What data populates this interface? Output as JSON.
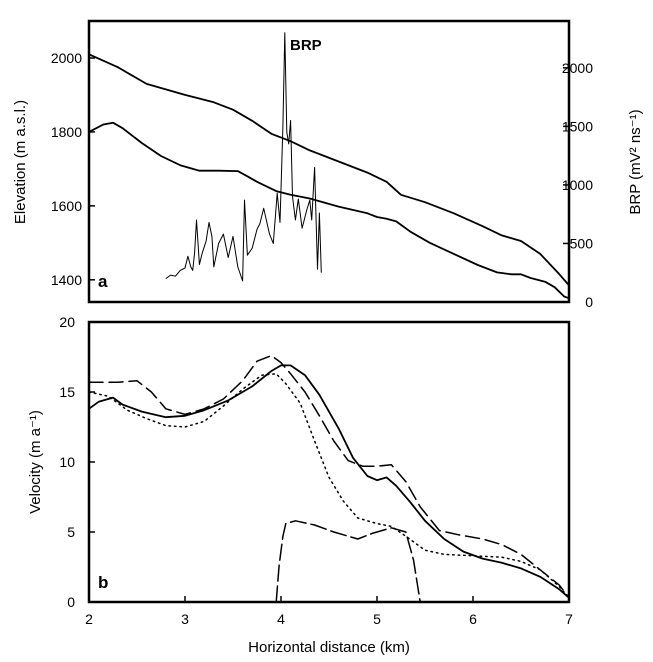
{
  "chart_data": [
    {
      "panel_label": "a",
      "type": "line",
      "xlabel": "",
      "ylabel": "Elevation (m a.s.l.)",
      "ylabel_right": "BRP (mV² ns⁻¹)",
      "xlim": [
        2,
        7
      ],
      "ylim": [
        1340,
        2100
      ],
      "ylim_right": [
        0,
        2400
      ],
      "yticks": [
        "1400",
        "1600",
        "1800",
        "2000"
      ],
      "yticks_right": [
        "0",
        "500",
        "1000",
        "1500",
        "2000"
      ],
      "annotation": "BRP",
      "series": [
        {
          "axis": "left",
          "points": [
            [
              2.0,
              2010
            ],
            [
              2.3,
              1975
            ],
            [
              2.6,
              1930
            ],
            [
              3.0,
              1900
            ],
            [
              3.3,
              1880
            ],
            [
              3.5,
              1860
            ],
            [
              3.7,
              1830
            ],
            [
              3.9,
              1795
            ],
            [
              4.1,
              1775
            ],
            [
              4.3,
              1750
            ],
            [
              4.6,
              1720
            ],
            [
              4.9,
              1690
            ],
            [
              5.1,
              1665
            ],
            [
              5.25,
              1630
            ],
            [
              5.5,
              1610
            ],
            [
              5.8,
              1580
            ],
            [
              6.1,
              1545
            ],
            [
              6.3,
              1520
            ],
            [
              6.5,
              1505
            ],
            [
              6.7,
              1470
            ],
            [
              6.9,
              1415
            ],
            [
              7.0,
              1385
            ]
          ]
        },
        {
          "axis": "left",
          "points": [
            [
              2.0,
              1800
            ],
            [
              2.15,
              1820
            ],
            [
              2.25,
              1825
            ],
            [
              2.35,
              1810
            ],
            [
              2.55,
              1770
            ],
            [
              2.75,
              1735
            ],
            [
              2.95,
              1710
            ],
            [
              3.15,
              1695
            ],
            [
              3.35,
              1695
            ],
            [
              3.55,
              1694
            ],
            [
              3.65,
              1680
            ],
            [
              3.75,
              1665
            ],
            [
              3.95,
              1640
            ],
            [
              4.1,
              1630
            ],
            [
              4.3,
              1620
            ],
            [
              4.6,
              1598
            ],
            [
              4.9,
              1580
            ],
            [
              5.0,
              1570
            ],
            [
              5.1,
              1565
            ],
            [
              5.2,
              1558
            ],
            [
              5.35,
              1530
            ],
            [
              5.55,
              1500
            ],
            [
              5.8,
              1470
            ],
            [
              6.05,
              1440
            ],
            [
              6.25,
              1420
            ],
            [
              6.4,
              1415
            ],
            [
              6.5,
              1415
            ],
            [
              6.6,
              1405
            ],
            [
              6.75,
              1395
            ],
            [
              6.85,
              1380
            ],
            [
              6.95,
              1355
            ],
            [
              7.0,
              1350
            ]
          ]
        },
        {
          "name": "BRP",
          "axis": "right",
          "points": [
            [
              2.8,
              200
            ],
            [
              2.85,
              230
            ],
            [
              2.9,
              220
            ],
            [
              2.95,
              270
            ],
            [
              3.0,
              290
            ],
            [
              3.03,
              390
            ],
            [
              3.06,
              300
            ],
            [
              3.08,
              270
            ],
            [
              3.1,
              420
            ],
            [
              3.12,
              700
            ],
            [
              3.15,
              320
            ],
            [
              3.18,
              420
            ],
            [
              3.22,
              520
            ],
            [
              3.25,
              680
            ],
            [
              3.28,
              560
            ],
            [
              3.3,
              300
            ],
            [
              3.35,
              500
            ],
            [
              3.4,
              580
            ],
            [
              3.45,
              380
            ],
            [
              3.5,
              560
            ],
            [
              3.55,
              300
            ],
            [
              3.6,
              180
            ],
            [
              3.62,
              870
            ],
            [
              3.65,
              400
            ],
            [
              3.7,
              460
            ],
            [
              3.75,
              620
            ],
            [
              3.78,
              670
            ],
            [
              3.82,
              800
            ],
            [
              3.88,
              580
            ],
            [
              3.92,
              500
            ],
            [
              3.96,
              930
            ],
            [
              3.99,
              680
            ],
            [
              4.02,
              1500
            ],
            [
              4.04,
              2300
            ],
            [
              4.06,
              1450
            ],
            [
              4.08,
              1350
            ],
            [
              4.1,
              1550
            ],
            [
              4.12,
              900
            ],
            [
              4.15,
              700
            ],
            [
              4.18,
              880
            ],
            [
              4.22,
              630
            ],
            [
              4.27,
              790
            ],
            [
              4.3,
              870
            ],
            [
              4.32,
              700
            ],
            [
              4.35,
              1150
            ],
            [
              4.38,
              280
            ],
            [
              4.4,
              760
            ],
            [
              4.42,
              250
            ]
          ]
        }
      ]
    },
    {
      "panel_label": "b",
      "type": "line",
      "xlabel": "Horizontal distance (km)",
      "ylabel": "Velocity (m a⁻¹)",
      "xlim": [
        2,
        7
      ],
      "ylim": [
        0,
        20
      ],
      "xticks": [
        "2",
        "3",
        "4",
        "5",
        "6",
        "7"
      ],
      "yticks": [
        "0",
        "5",
        "10",
        "15",
        "20"
      ],
      "series": [
        {
          "style": "solid",
          "points": [
            [
              2.0,
              13.8
            ],
            [
              2.1,
              14.3
            ],
            [
              2.25,
              14.6
            ],
            [
              2.35,
              14.1
            ],
            [
              2.55,
              13.6
            ],
            [
              2.8,
              13.2
            ],
            [
              3.0,
              13.3
            ],
            [
              3.2,
              13.7
            ],
            [
              3.45,
              14.4
            ],
            [
              3.7,
              15.4
            ],
            [
              3.9,
              16.5
            ],
            [
              4.0,
              16.9
            ],
            [
              4.1,
              16.9
            ],
            [
              4.25,
              16.2
            ],
            [
              4.4,
              14.8
            ],
            [
              4.6,
              12.4
            ],
            [
              4.75,
              10.3
            ],
            [
              4.9,
              9.0
            ],
            [
              5.0,
              8.7
            ],
            [
              5.1,
              8.9
            ],
            [
              5.2,
              8.3
            ],
            [
              5.35,
              7.1
            ],
            [
              5.5,
              5.8
            ],
            [
              5.7,
              4.5
            ],
            [
              5.9,
              3.6
            ],
            [
              6.1,
              3.1
            ],
            [
              6.3,
              2.8
            ],
            [
              6.5,
              2.4
            ],
            [
              6.7,
              1.8
            ],
            [
              6.9,
              0.9
            ],
            [
              7.0,
              0.3
            ]
          ]
        },
        {
          "style": "dashed",
          "points": [
            [
              2.0,
              15.7
            ],
            [
              2.3,
              15.7
            ],
            [
              2.5,
              15.8
            ],
            [
              2.65,
              15.0
            ],
            [
              2.8,
              13.8
            ],
            [
              3.0,
              13.4
            ],
            [
              3.2,
              13.8
            ],
            [
              3.4,
              14.5
            ],
            [
              3.6,
              15.8
            ],
            [
              3.75,
              17.2
            ],
            [
              3.9,
              17.6
            ],
            [
              4.0,
              17.1
            ],
            [
              4.1,
              16.3
            ],
            [
              4.25,
              15.0
            ],
            [
              4.4,
              13.3
            ],
            [
              4.55,
              11.5
            ],
            [
              4.7,
              10.1
            ],
            [
              4.85,
              9.7
            ],
            [
              5.0,
              9.7
            ],
            [
              5.15,
              9.8
            ],
            [
              5.3,
              8.6
            ],
            [
              5.45,
              6.8
            ],
            [
              5.65,
              5.1
            ],
            [
              5.85,
              4.8
            ],
            [
              6.1,
              4.5
            ],
            [
              6.3,
              4.1
            ],
            [
              6.5,
              3.4
            ],
            [
              6.7,
              2.3
            ],
            [
              6.9,
              1.2
            ],
            [
              7.0,
              0.3
            ]
          ]
        },
        {
          "style": "dotted",
          "points": [
            [
              2.0,
              15.0
            ],
            [
              2.2,
              14.7
            ],
            [
              2.4,
              13.7
            ],
            [
              2.6,
              13.1
            ],
            [
              2.8,
              12.6
            ],
            [
              3.0,
              12.5
            ],
            [
              3.2,
              12.9
            ],
            [
              3.4,
              14.0
            ],
            [
              3.6,
              15.2
            ],
            [
              3.8,
              16.2
            ],
            [
              3.95,
              16.3
            ],
            [
              4.05,
              15.6
            ],
            [
              4.2,
              14.2
            ],
            [
              4.35,
              11.5
            ],
            [
              4.5,
              8.9
            ],
            [
              4.65,
              7.2
            ],
            [
              4.8,
              6.0
            ],
            [
              5.0,
              5.6
            ],
            [
              5.15,
              5.4
            ],
            [
              5.3,
              4.7
            ],
            [
              5.5,
              3.7
            ],
            [
              5.7,
              3.4
            ],
            [
              6.0,
              3.3
            ],
            [
              6.3,
              3.2
            ],
            [
              6.5,
              2.9
            ],
            [
              6.7,
              2.3
            ],
            [
              6.9,
              1.1
            ],
            [
              7.0,
              0.3
            ]
          ]
        },
        {
          "style": "long-dash",
          "points": [
            [
              3.95,
              0
            ],
            [
              3.98,
              2.6
            ],
            [
              4.02,
              4.7
            ],
            [
              4.05,
              5.6
            ],
            [
              4.15,
              5.8
            ],
            [
              4.35,
              5.5
            ],
            [
              4.55,
              5.0
            ],
            [
              4.8,
              4.5
            ],
            [
              4.95,
              4.9
            ],
            [
              5.15,
              5.3
            ],
            [
              5.3,
              5.0
            ],
            [
              5.38,
              3.0
            ],
            [
              5.45,
              0
            ]
          ]
        }
      ]
    }
  ]
}
